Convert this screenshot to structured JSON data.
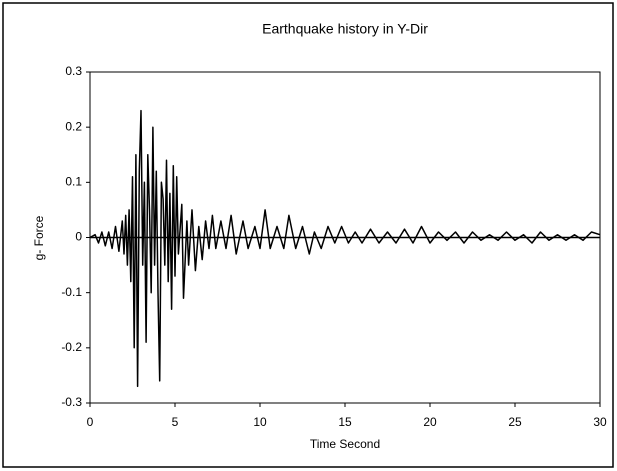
{
  "chart_data": {
    "type": "line",
    "title": "Earthquake history in Y-Dir",
    "xlabel": "Time Second",
    "ylabel": "g- Force",
    "x": [
      0,
      0.3,
      0.5,
      0.7,
      0.9,
      1.1,
      1.3,
      1.5,
      1.7,
      1.9,
      2.0,
      2.1,
      2.2,
      2.3,
      2.4,
      2.5,
      2.6,
      2.7,
      2.8,
      2.9,
      3.0,
      3.1,
      3.2,
      3.3,
      3.4,
      3.5,
      3.6,
      3.7,
      3.8,
      3.9,
      4.0,
      4.1,
      4.2,
      4.3,
      4.4,
      4.5,
      4.6,
      4.7,
      4.8,
      4.9,
      5.0,
      5.1,
      5.2,
      5.4,
      5.5,
      5.7,
      5.8,
      6.0,
      6.2,
      6.4,
      6.6,
      6.8,
      7.0,
      7.2,
      7.4,
      7.7,
      8.0,
      8.3,
      8.6,
      9.0,
      9.3,
      9.7,
      10.0,
      10.3,
      10.6,
      11.0,
      11.4,
      11.7,
      12.1,
      12.5,
      12.9,
      13.2,
      13.6,
      14.0,
      14.4,
      14.8,
      15.2,
      15.6,
      16.0,
      16.5,
      17.0,
      17.5,
      18.0,
      18.5,
      19.0,
      19.5,
      20.0,
      20.5,
      21.0,
      21.5,
      22.0,
      22.5,
      23.0,
      23.5,
      24.0,
      24.5,
      25.0,
      25.5,
      26.0,
      26.5,
      27.0,
      27.5,
      28.0,
      28.5,
      29.0,
      29.5,
      30.0
    ],
    "values": [
      0,
      0.005,
      -0.01,
      0.01,
      -0.015,
      0.01,
      -0.02,
      0.02,
      -0.025,
      0.03,
      -0.03,
      0.04,
      -0.05,
      0.05,
      -0.08,
      0.11,
      -0.2,
      0.15,
      -0.27,
      0.12,
      0.23,
      -0.05,
      0.1,
      -0.19,
      0.15,
      0.05,
      -0.1,
      0.2,
      -0.05,
      0.12,
      -0.1,
      -0.26,
      0.1,
      0.07,
      -0.05,
      0.14,
      -0.08,
      0.08,
      -0.13,
      0.13,
      -0.07,
      0.11,
      -0.03,
      0.06,
      -0.11,
      0.03,
      -0.05,
      0.05,
      -0.06,
      0.02,
      -0.04,
      0.03,
      -0.02,
      0.04,
      -0.02,
      0.03,
      -0.02,
      0.04,
      -0.03,
      0.03,
      -0.02,
      0.02,
      -0.02,
      0.05,
      -0.02,
      0.02,
      -0.02,
      0.04,
      -0.02,
      0.02,
      -0.03,
      0.01,
      -0.02,
      0.02,
      -0.01,
      0.02,
      -0.01,
      0.01,
      -0.01,
      0.015,
      -0.01,
      0.01,
      -0.01,
      0.015,
      -0.01,
      0.02,
      -0.01,
      0.01,
      -0.005,
      0.01,
      -0.01,
      0.01,
      -0.005,
      0.005,
      -0.005,
      0.01,
      -0.005,
      0.005,
      -0.01,
      0.01,
      -0.005,
      0.005,
      -0.005,
      0.005,
      -0.005,
      0.01,
      0.005
    ],
    "color": "#000000",
    "xlim": [
      0,
      30
    ],
    "xticks": [
      0,
      5,
      10,
      15,
      20,
      25,
      30
    ],
    "ylim": [
      -0.3,
      0.3
    ],
    "yticks": [
      -0.3,
      -0.2,
      -0.1,
      0,
      0.1,
      0.2,
      0.3
    ]
  }
}
